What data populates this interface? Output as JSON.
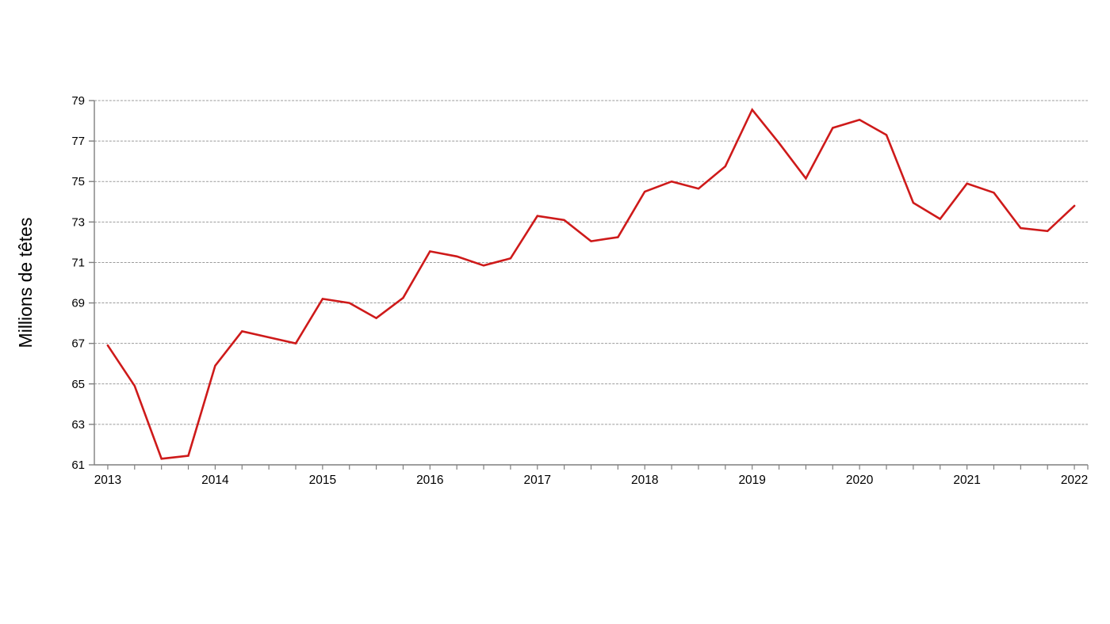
{
  "chart_data": {
    "type": "line",
    "ylabel": "Millions de têtes",
    "xlabel": "",
    "legend": "none",
    "grid": "horizontal-dashed",
    "ylim": [
      61,
      79
    ],
    "y_ticks": [
      61,
      63,
      65,
      67,
      69,
      71,
      73,
      75,
      77,
      79
    ],
    "x_tick_labels": [
      "2013",
      "2014",
      "2015",
      "2016",
      "2017",
      "2018",
      "2019",
      "2020",
      "2021",
      "2022"
    ],
    "x": [
      "2013 T1",
      "2013 T2",
      "2013 T3",
      "2013 T4",
      "2014 T1",
      "2014 T2",
      "2014 T3",
      "2014 T4",
      "2015 T1",
      "2015 T2",
      "2015 T3",
      "2015 T4",
      "2016 T1",
      "2016 T2",
      "2016 T3",
      "2016 T4",
      "2017 T1",
      "2017 T2",
      "2017 T3",
      "2017 T4",
      "2018 T1",
      "2018 T2",
      "2018 T3",
      "2018 T4",
      "2019 T1",
      "2019 T2",
      "2019 T3",
      "2019 T4",
      "2020 T1",
      "2020 T2",
      "2020 T3",
      "2020 T4",
      "2021 T1",
      "2021 T2",
      "2021 T3",
      "2021 T4",
      "2022 T1"
    ],
    "values": [
      66.9,
      64.9,
      61.3,
      61.45,
      65.9,
      67.6,
      67.3,
      67.0,
      69.2,
      69.0,
      68.25,
      69.25,
      71.55,
      71.3,
      70.85,
      71.2,
      73.3,
      73.1,
      72.05,
      72.25,
      74.5,
      75.0,
      74.65,
      75.75,
      78.55,
      76.9,
      75.15,
      77.65,
      78.05,
      77.3,
      73.95,
      73.15,
      74.9,
      74.45,
      72.7,
      72.55,
      73.8
    ],
    "colors": {
      "series": "#CE1A1A",
      "gridline": "#9B9B9B",
      "axis": "#7F7F7F",
      "text": "#000000",
      "background": "#FFFFFF"
    }
  }
}
